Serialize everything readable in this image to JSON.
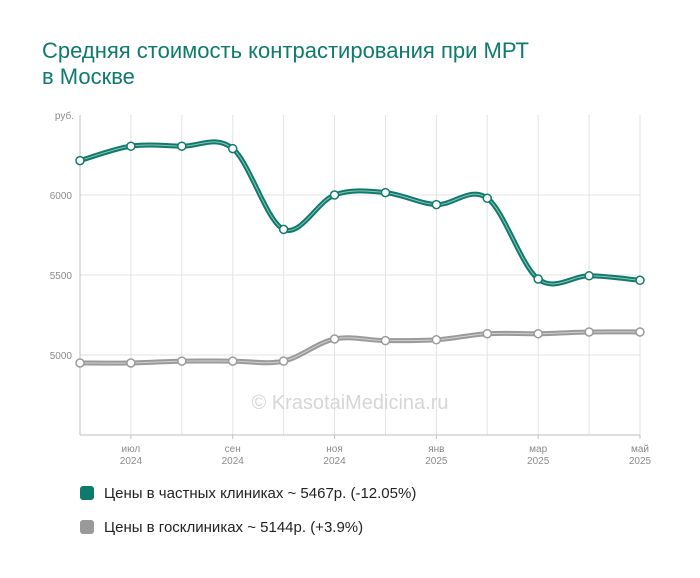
{
  "title_lines": [
    "Средняя стоимость контрастирования при МРТ",
    "в Москве"
  ],
  "watermark": "© KrasotaiMedicina.ru",
  "chart_data": {
    "type": "line",
    "title": "Средняя стоимость контрастирования при МРТ в Москве",
    "ylabel": "руб.",
    "ylim": [
      4500,
      6500
    ],
    "yticks": [
      5000,
      5500,
      6000
    ],
    "grid": true,
    "x": [
      "2024-06",
      "2024-07",
      "2024-08",
      "2024-09",
      "2024-10",
      "2024-11",
      "2024-12",
      "2025-01",
      "2025-02",
      "2025-03",
      "2025-04",
      "2025-05"
    ],
    "xtick_labels": [
      {
        "index": 1,
        "month": "июл",
        "year": "2024"
      },
      {
        "index": 3,
        "month": "сен",
        "year": "2024"
      },
      {
        "index": 5,
        "month": "ноя",
        "year": "2024"
      },
      {
        "index": 7,
        "month": "янв",
        "year": "2025"
      },
      {
        "index": 9,
        "month": "мар",
        "year": "2025"
      },
      {
        "index": 11,
        "month": "май",
        "year": "2025"
      }
    ],
    "series": [
      {
        "name": "Цены в частных клиниках ~ 5467р. (-12.05%)",
        "color": "#0e7a6b",
        "values": [
          6215,
          6305,
          6305,
          6290,
          5785,
          6000,
          6015,
          5940,
          5980,
          5475,
          5495,
          5467
        ]
      },
      {
        "name": "Цены в госклиниках ~ 5144р. (+3.9%)",
        "color": "#9a9a9a",
        "values": [
          4950,
          4950,
          4962,
          4962,
          4962,
          5100,
          5090,
          5095,
          5133,
          5133,
          5144,
          5144
        ]
      }
    ],
    "legend": "bottom-left"
  }
}
